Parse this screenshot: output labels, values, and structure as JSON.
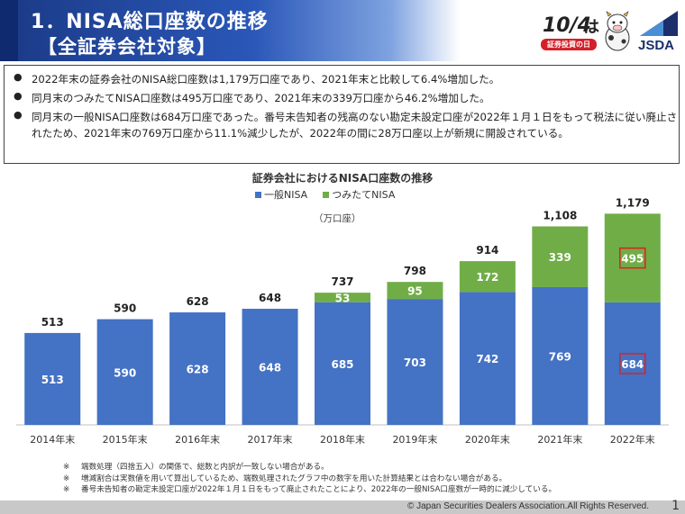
{
  "header": {
    "title_line1": "1．NISA総口座数の推移",
    "title_line2": "【全証券会社対象】",
    "logo_date": "10/4",
    "logo_ha": "は",
    "logo_tag": "証券投資の日",
    "brand": "JSDA"
  },
  "summary": [
    "2022年末の証券会社のNISA総口座数は1,179万口座であり、2021年末と比較して6.4%増加した。",
    "同月末のつみたてNISA口座数は495万口座であり、2021年末の339万口座から46.2%増加した。",
    "同月末の一般NISA口座数は684万口座であった。番号未告知者の残高のない勘定未設定口座が2022年１月１日をもって税法に従い廃止されたため、2021年末の769万口座から11.1%減少したが、2022年の間に28万口座以上が新規に開設されている。"
  ],
  "chart_data": {
    "type": "bar",
    "stacked": true,
    "title": "証券会社におけるNISA口座数の推移",
    "unit_label": "（万口座）",
    "categories": [
      "2014年末",
      "2015年末",
      "2016年末",
      "2017年末",
      "2018年末",
      "2019年末",
      "2020年末",
      "2021年末",
      "2022年末"
    ],
    "series": [
      {
        "name": "一般NISA",
        "color": "#4472c4",
        "values": [
          513,
          590,
          628,
          648,
          685,
          703,
          742,
          769,
          684
        ],
        "labels": [
          "513",
          "590",
          "628",
          "648",
          "685",
          "703",
          "742",
          "769",
          "684"
        ]
      },
      {
        "name": "つみたてNISA",
        "color": "#70ad47",
        "values": [
          0,
          0,
          0,
          0,
          53,
          95,
          172,
          339,
          495
        ],
        "labels": [
          "",
          "",
          "",
          "",
          "53",
          "95",
          "172",
          "339",
          "495"
        ]
      }
    ],
    "totals": [
      "513",
      "590",
      "628",
      "648",
      "737",
      "798",
      "914",
      "1,108",
      "1,179"
    ],
    "highlight_category": "2022年末",
    "ylim": [
      0,
      1250
    ]
  },
  "notes": [
    {
      "mark": "※",
      "text": "端数処理（四捨五入）の関係で、総数と内訳が一致しない場合がある。"
    },
    {
      "mark": "※",
      "text": "増減割合は実数値を用いて算出しているため、端数処理されたグラフ中の数字を用いた計算結果とは合わない場合がある。"
    },
    {
      "mark": "※",
      "text": "番号未告知者の勘定未設定口座が2022年１月１日をもって廃止されたことにより、2022年の一般NISA口座数が一時的に減少している。"
    }
  ],
  "footer": {
    "copyright": "© Japan Securities Dealers Association.All Rights Reserved.",
    "page": "1"
  }
}
